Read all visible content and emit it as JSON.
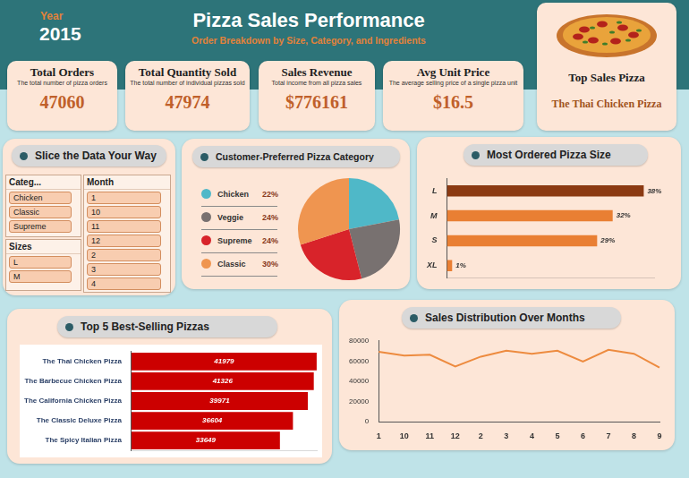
{
  "header": {
    "year_label": "Year",
    "year": "2015",
    "title": "Pizza Sales Performance",
    "subtitle": "Order Breakdown by Size, Category, and Ingredients"
  },
  "kpis": [
    {
      "title": "Total Orders",
      "description": "The total number of pizza orders",
      "value": 47060
    },
    {
      "title": "Total Quantity Sold",
      "description": "The total number of individual pizzas sold",
      "value": 47974
    },
    {
      "title": "Sales Revenue",
      "description": "Total income from all pizza sales",
      "value": 776161,
      "label": "$776161"
    },
    {
      "title": "Avg Unit Price",
      "description": "The average selling price of a single pizza unit",
      "value": 16.5,
      "label": "$16.5"
    }
  ],
  "top_pizza": {
    "title": "Top Sales Pizza",
    "name": "The Thai Chicken Pizza"
  },
  "slicer_panel": {
    "title": "Slice the Data Your Way",
    "slicers": [
      {
        "title": "Categ...",
        "items": [
          "Chicken",
          "Classic",
          "Supreme"
        ]
      },
      {
        "title": "Sizes",
        "items": [
          "L",
          "M"
        ]
      },
      {
        "title": "Month",
        "items": [
          "1",
          "10",
          "11",
          "12",
          "2",
          "3",
          "4"
        ]
      }
    ]
  },
  "chart_data": [
    {
      "type": "pie",
      "title": "Customer-Preferred Pizza Category",
      "categories": [
        "Chicken",
        "Veggie",
        "Supreme",
        "Classic"
      ],
      "values": [
        22,
        24,
        24,
        30
      ],
      "value_labels": [
        "22%",
        "24%",
        "24%",
        "30%"
      ],
      "colors": [
        "#4fb8c8",
        "#787170",
        "#d8232a",
        "#ef9550"
      ],
      "legend": "left"
    },
    {
      "type": "bar",
      "title": "Most Ordered Pizza Size",
      "orientation": "horizontal",
      "categories": [
        "L",
        "M",
        "S",
        "XL"
      ],
      "values": [
        38,
        32,
        29,
        1
      ],
      "value_labels": [
        "38%",
        "32%",
        "29%",
        "1%"
      ],
      "data_labels": true,
      "colors": [
        "#8b3a12",
        "#e97f33",
        "#e97f33",
        "#e97f33"
      ],
      "xlim": [
        0,
        40
      ],
      "tick_labels": "y",
      "grid": false
    },
    {
      "type": "bar",
      "title": "Top 5 Best-Selling Pizzas",
      "orientation": "horizontal",
      "categories": [
        "The Thai Chicken Pizza",
        "The Barbecue Chicken Pizza",
        "The California Chicken Pizza",
        "The Classic Deluxe Pizza",
        "The Spicy Italian Pizza"
      ],
      "values": [
        41979,
        41326,
        39971,
        36604,
        33649
      ],
      "data_labels": true,
      "color": "#cc0000",
      "xlim": [
        0,
        42000
      ],
      "tick_labels": "y",
      "grid": false
    },
    {
      "type": "line",
      "title": "Sales Distribution Over Months",
      "categories": [
        "1",
        "10",
        "11",
        "12",
        "2",
        "3",
        "4",
        "5",
        "6",
        "7",
        "8",
        "9"
      ],
      "values": [
        69300,
        65400,
        66300,
        54600,
        64400,
        70200,
        67300,
        70200,
        59500,
        71200,
        67300,
        53700
      ],
      "color": "#ed8b3f",
      "ylim": [
        0,
        80000
      ],
      "yticks": [
        0,
        20000,
        40000,
        60000,
        80000
      ],
      "grid": false
    }
  ]
}
